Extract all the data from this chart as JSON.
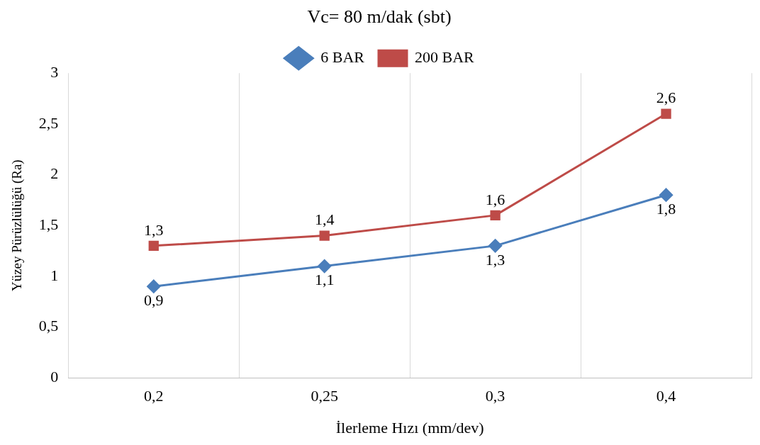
{
  "chart_data": {
    "type": "line",
    "title": "Vc= 80 m/dak (sbt)",
    "xlabel": "İlerleme Hızı (mm/dev)",
    "ylabel": "Yüzey Pürüzlülüğü (Ra)",
    "categories": [
      "0,2",
      "0,25",
      "0,3",
      "0,4"
    ],
    "series": [
      {
        "name": "6 BAR",
        "color": "#4a7ebb",
        "marker": "diamond",
        "values": [
          0.9,
          1.1,
          1.3,
          1.8
        ],
        "value_labels": [
          "0,9",
          "1,1",
          "1,3",
          "1,8"
        ]
      },
      {
        "name": "200 BAR",
        "color": "#be4b48",
        "marker": "square",
        "values": [
          1.3,
          1.4,
          1.6,
          2.6
        ],
        "value_labels": [
          "1,3",
          "1,4",
          "1,6",
          "2,6"
        ]
      }
    ],
    "ylim": [
      0,
      3
    ],
    "yticks": [
      0,
      {
        "value": 0.5,
        "label": "0,5"
      },
      1,
      {
        "value": 1.5,
        "label": "1,5"
      },
      2,
      {
        "value": 2.5,
        "label": "2,5"
      },
      3
    ],
    "grid": "x",
    "legend": "top",
    "line_style": "solid"
  }
}
